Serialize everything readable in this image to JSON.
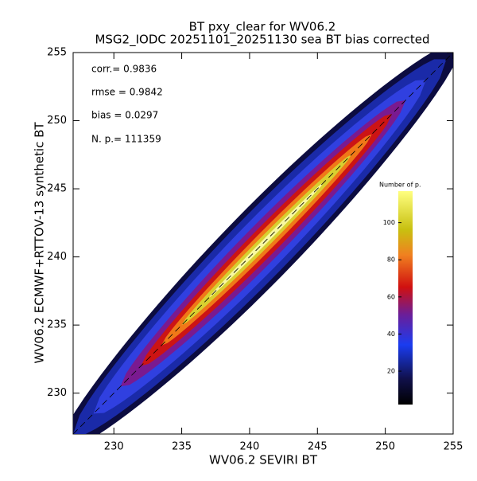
{
  "chart_data": {
    "type": "density",
    "title": "BT pxy_clear for WV06.2",
    "subtitle": "MSG2_IODC 20251101_20251130 sea BT bias corrected",
    "xlabel": "WV06.2 SEVIRI BT",
    "ylabel": "WV06.2 ECMWF+RTTOV-13 synthetic BT",
    "xlim": [
      227,
      255
    ],
    "ylim": [
      227,
      255
    ],
    "xticks": [
      230,
      235,
      240,
      245,
      250,
      255
    ],
    "yticks": [
      230,
      235,
      240,
      245,
      250,
      255
    ],
    "annotations": [
      "corr.= 0.9836",
      "rmse = 0.9842",
      "bias = 0.0297",
      "N. p.=  111359"
    ],
    "colorbar": {
      "label": "Number of p.",
      "lim": [
        2,
        117
      ],
      "ticks": [
        20,
        40,
        60,
        80,
        100
      ]
    }
  }
}
